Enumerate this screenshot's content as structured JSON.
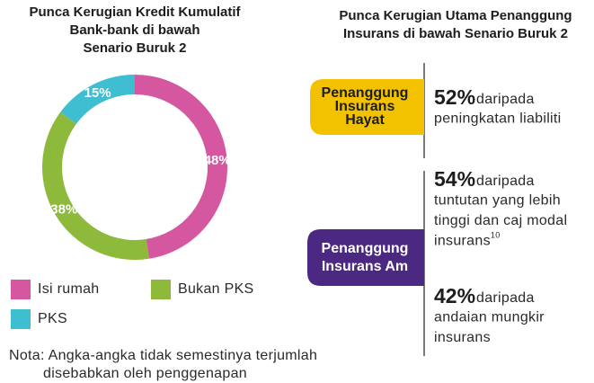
{
  "chart_data": {
    "type": "pie",
    "title": [
      "Punca Kerugian Kredit Kumulatif",
      "Bank-bank di bawah",
      "Senario Buruk 2"
    ],
    "categories": [
      "Isi rumah",
      "Bukan PKS",
      "PKS"
    ],
    "values": [
      48,
      38,
      15
    ],
    "value_labels": [
      "48%",
      "38%",
      "15%"
    ],
    "colors": [
      "#d4579f",
      "#8dba3b",
      "#3fbdd1"
    ],
    "donut": true
  },
  "note": [
    "Nota: Angka-angka tidak semestinya terjumlah",
    "disebabkan oleh penggenapan"
  ],
  "panel": {
    "title": [
      "Punca Kerugian Utama Penanggung",
      "Insurans di bawah Senario Buruk 2"
    ],
    "groups": [
      {
        "label": [
          "Penanggung",
          "Insurans",
          "Hayat"
        ],
        "items": [
          {
            "figure": "52%",
            "lines": [
              "daripada",
              "peningkatan liabiliti"
            ]
          }
        ]
      },
      {
        "label": [
          "Penanggung",
          "Insurans Am"
        ],
        "items": [
          {
            "figure": "54%",
            "lines": [
              "daripada",
              "tuntutan yang lebih",
              "tinggi dan caj modal",
              "insurans"
            ],
            "footnote": "10"
          },
          {
            "figure": "42%",
            "lines": [
              "daripada",
              "andaian mungkir",
              "insurans"
            ]
          }
        ]
      }
    ]
  }
}
